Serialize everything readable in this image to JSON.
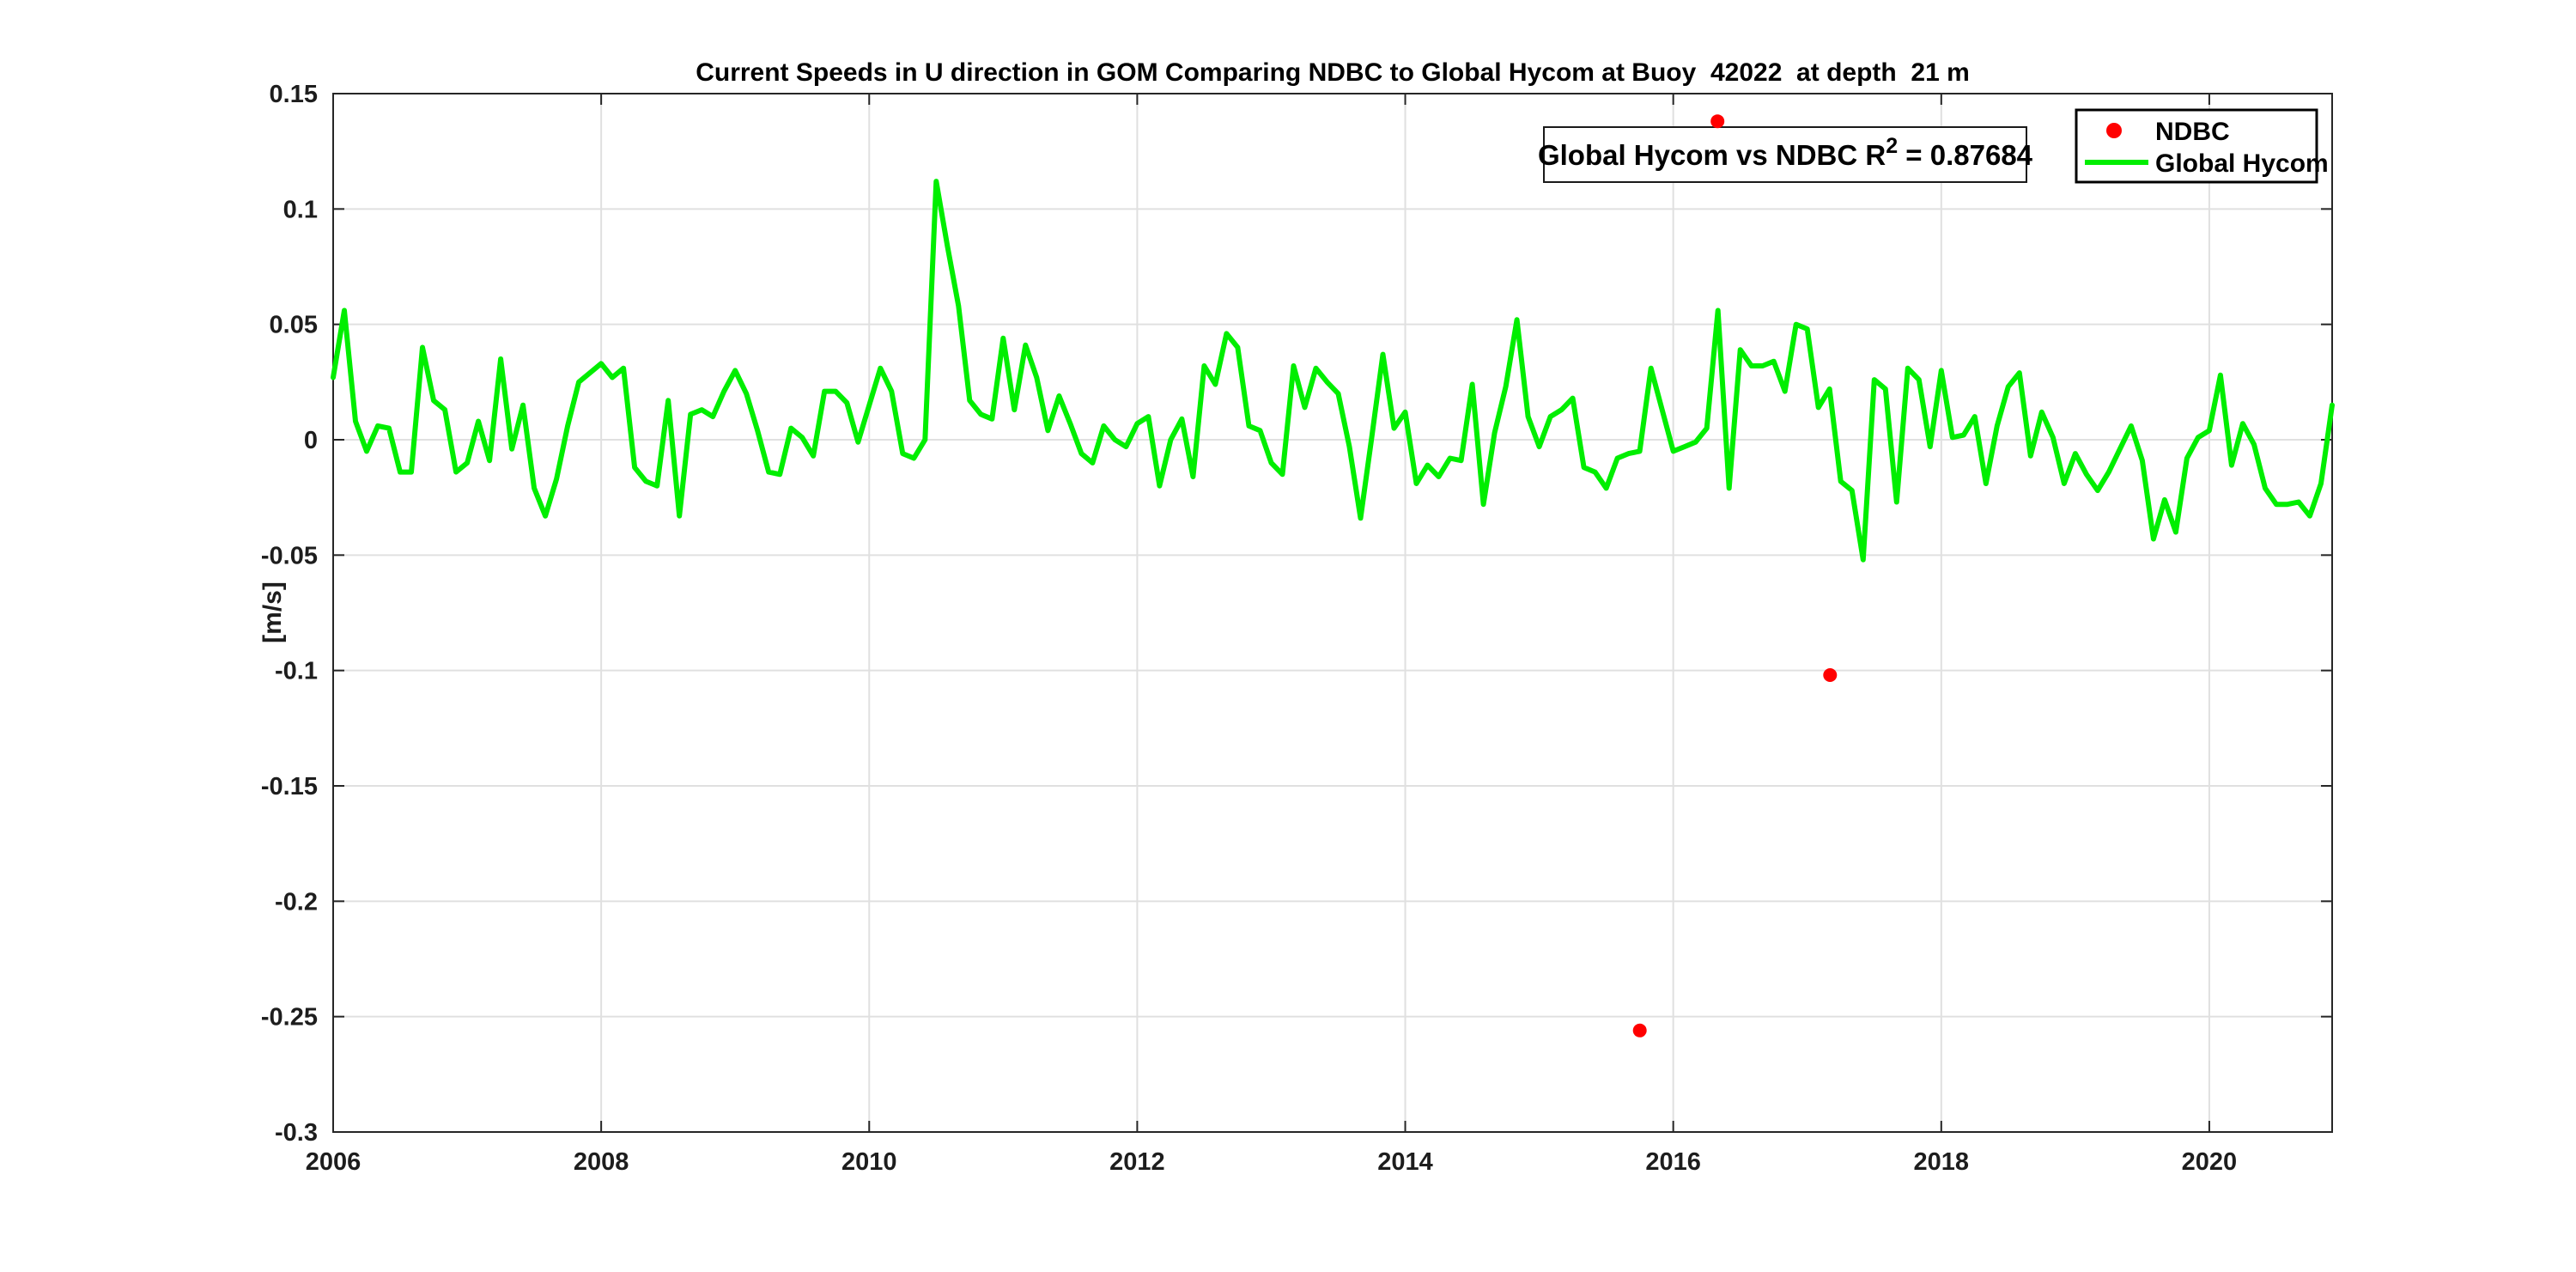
{
  "figure": {
    "background": "#ffffff",
    "annotation": {
      "prefix": "Global Hycom vs NDBC R",
      "superscript": "2",
      "suffix": " = 0.87684"
    },
    "legend": {
      "items": [
        {
          "label": "NDBC",
          "marker": "red-dot"
        },
        {
          "label": "Global Hycom",
          "marker": "green-line"
        }
      ]
    },
    "colors": {
      "ndbc": "#ff0000",
      "hycom": "#00ee00",
      "axis": "#262626",
      "tick_label": "#1d1d1d",
      "grid": "#e0e0e0",
      "box_border": "#1a1a1a"
    }
  },
  "chart_data": {
    "type": "line",
    "title": "Current Speeds in U direction in GOM Comparing NDBC to Global Hycom at Buoy  42022  at depth  21 m",
    "xlabel": "",
    "ylabel": "[m/s]",
    "xlim": [
      2006,
      2020.9167
    ],
    "ylim": [
      -0.3,
      0.15
    ],
    "x_ticks": [
      2006,
      2008,
      2010,
      2012,
      2014,
      2016,
      2018,
      2020
    ],
    "y_ticks": [
      0.15,
      0.1,
      0.05,
      0,
      -0.05,
      -0.1,
      -0.15,
      -0.2,
      -0.25,
      -0.3
    ],
    "grid": true,
    "legend_position": "top-right",
    "annotation_text": "Global Hycom vs NDBC R^2 = 0.87684",
    "r_squared": 0.87684,
    "series": [
      {
        "name": "Global Hycom",
        "type": "line",
        "color": "#00ee00",
        "x_start_year": 2006.0,
        "x_step_years": 0.0833333,
        "values": [
          0.027,
          0.056,
          0.008,
          -0.005,
          0.006,
          0.005,
          -0.014,
          -0.014,
          0.04,
          0.017,
          0.013,
          -0.014,
          -0.01,
          0.008,
          -0.009,
          0.035,
          -0.004,
          0.015,
          -0.021,
          -0.033,
          -0.017,
          0.006,
          0.025,
          0.029,
          0.033,
          0.027,
          0.031,
          -0.012,
          -0.018,
          -0.02,
          0.017,
          -0.033,
          0.011,
          0.013,
          0.01,
          0.021,
          0.03,
          0.02,
          0.004,
          -0.014,
          -0.015,
          0.005,
          0.001,
          -0.007,
          0.021,
          0.021,
          0.016,
          -0.001,
          0.015,
          0.031,
          0.021,
          -0.006,
          -0.008,
          0.0,
          0.112,
          0.084,
          0.058,
          0.017,
          0.011,
          0.009,
          0.044,
          0.013,
          0.041,
          0.027,
          0.004,
          0.019,
          0.007,
          -0.006,
          -0.01,
          0.006,
          0.0,
          -0.003,
          0.007,
          0.01,
          -0.02,
          0.0,
          0.009,
          -0.016,
          0.032,
          0.024,
          0.046,
          0.04,
          0.006,
          0.004,
          -0.01,
          -0.015,
          0.032,
          0.014,
          0.031,
          0.025,
          0.02,
          -0.003,
          -0.034,
          0.001,
          0.037,
          0.005,
          0.012,
          -0.019,
          -0.011,
          -0.016,
          -0.008,
          -0.009,
          0.024,
          -0.028,
          0.003,
          0.023,
          0.052,
          0.01,
          -0.003,
          0.01,
          0.013,
          0.018,
          -0.012,
          -0.014,
          -0.021,
          -0.008,
          -0.006,
          -0.005,
          0.031,
          0.013,
          -0.005,
          -0.003,
          -0.001,
          0.005,
          0.056,
          -0.021,
          0.039,
          0.032,
          0.032,
          0.034,
          0.021,
          0.05,
          0.048,
          0.014,
          0.022,
          -0.018,
          -0.022,
          -0.052,
          0.026,
          0.022,
          -0.027,
          0.031,
          0.026,
          -0.003,
          0.03,
          0.001,
          0.002,
          0.01,
          -0.019,
          0.006,
          0.023,
          0.029,
          -0.007,
          0.012,
          0.001,
          -0.019,
          -0.006,
          -0.015,
          -0.022,
          -0.014,
          -0.004,
          0.006,
          -0.009,
          -0.043,
          -0.026,
          -0.04,
          -0.008,
          0.001,
          0.004,
          0.028,
          -0.011,
          0.007,
          -0.002,
          -0.021,
          -0.028,
          -0.028,
          -0.027,
          -0.033,
          -0.019,
          0.015
        ]
      },
      {
        "name": "NDBC",
        "type": "scatter",
        "color": "#ff0000",
        "points": [
          {
            "x": 2015.75,
            "y": -0.256
          },
          {
            "x": 2016.33,
            "y": 0.138
          },
          {
            "x": 2017.17,
            "y": -0.102
          }
        ]
      }
    ]
  }
}
